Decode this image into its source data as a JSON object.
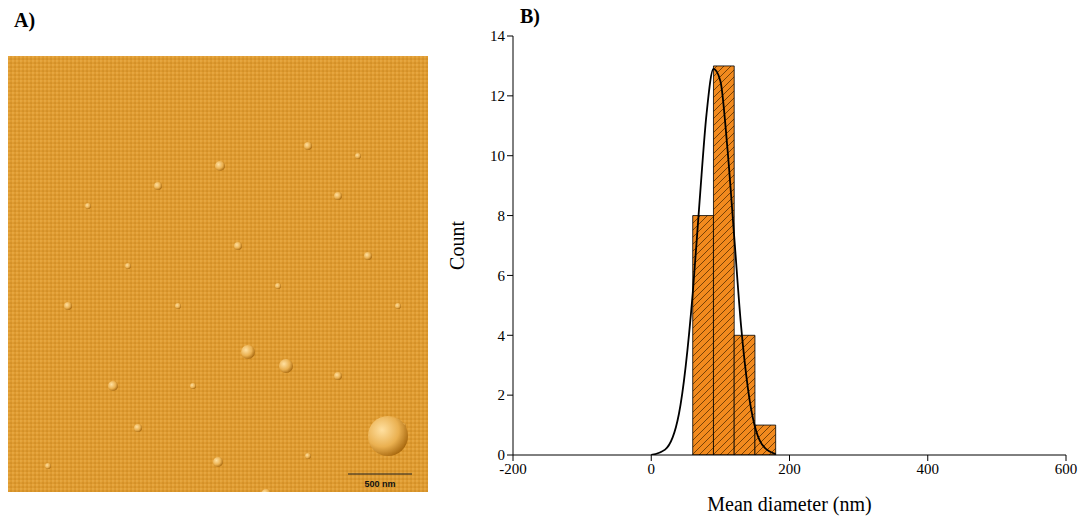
{
  "panel_labels": [
    "A)",
    "B)"
  ],
  "image": {
    "scale_bar": "500 nm"
  },
  "chart_data": {
    "type": "histogram",
    "xlabel": "Mean diameter (nm)",
    "ylabel": "Count",
    "bins": [
      60,
      90,
      120,
      150,
      180
    ],
    "counts": [
      8,
      13,
      4,
      1
    ],
    "color": "#f28a1e",
    "xlim": [
      -200,
      600
    ],
    "xticks": [
      -200,
      0,
      200,
      400,
      600
    ],
    "ylim": [
      0,
      14
    ],
    "yticks": [
      0,
      2,
      4,
      6,
      8,
      10,
      12,
      14
    ],
    "fit_curve": {
      "color": "#000000",
      "x": [
        0,
        20,
        40,
        60,
        70,
        80,
        90,
        100,
        110,
        120,
        130,
        140,
        160,
        180
      ],
      "y": [
        0,
        0.18,
        1.37,
        5.4,
        8.5,
        11.4,
        12.9,
        12.5,
        10.3,
        7.3,
        4.3,
        2.2,
        0.36,
        0.03
      ]
    }
  }
}
